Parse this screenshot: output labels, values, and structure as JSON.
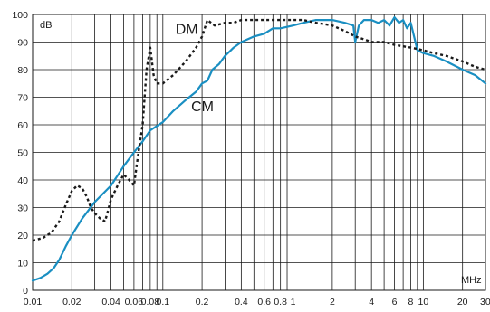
{
  "chart_data": {
    "type": "line",
    "title": "",
    "xscale": "log",
    "xlim": [
      0.01,
      30
    ],
    "ylim": [
      0,
      100
    ],
    "grid": true,
    "ylabel": "dB",
    "xlabel": "MHz",
    "x_ticks": [
      {
        "value": 0.01,
        "label": "0.01"
      },
      {
        "value": 0.02,
        "label": "0.02"
      },
      {
        "value": 0.04,
        "label": "0.04"
      },
      {
        "value": 0.06,
        "label": "0.06"
      },
      {
        "value": 0.08,
        "label": "0.08"
      },
      {
        "value": 0.1,
        "label": "0.1"
      },
      {
        "value": 0.2,
        "label": "0.2"
      },
      {
        "value": 0.4,
        "label": "0.4"
      },
      {
        "value": 0.6,
        "label": "0.6"
      },
      {
        "value": 0.8,
        "label": "0.8"
      },
      {
        "value": 1,
        "label": "1"
      },
      {
        "value": 2,
        "label": "2"
      },
      {
        "value": 4,
        "label": "4"
      },
      {
        "value": 6,
        "label": "6"
      },
      {
        "value": 8,
        "label": "8"
      },
      {
        "value": 10,
        "label": "10"
      },
      {
        "value": 20,
        "label": "20"
      },
      {
        "value": 30,
        "label": "30"
      }
    ],
    "x_gridlines": [
      0.01,
      0.02,
      0.03,
      0.04,
      0.05,
      0.06,
      0.07,
      0.08,
      0.09,
      0.1,
      0.2,
      0.3,
      0.4,
      0.5,
      0.6,
      0.7,
      0.8,
      0.9,
      1,
      2,
      3,
      4,
      5,
      6,
      7,
      8,
      9,
      10,
      20,
      30
    ],
    "y_ticks": [
      {
        "value": 0,
        "label": "0"
      },
      {
        "value": 10,
        "label": "10"
      },
      {
        "value": 20,
        "label": "20"
      },
      {
        "value": 30,
        "label": "30"
      },
      {
        "value": 40,
        "label": "40"
      },
      {
        "value": 50,
        "label": "50"
      },
      {
        "value": 60,
        "label": "60"
      },
      {
        "value": 70,
        "label": "70"
      },
      {
        "value": 80,
        "label": "80"
      },
      {
        "value": 90,
        "label": "90"
      },
      {
        "value": 100,
        "label": "100"
      }
    ],
    "series": [
      {
        "name": "CM",
        "color": "#1a8fc2",
        "style": "solid",
        "x": [
          0.01,
          0.0115,
          0.013,
          0.0145,
          0.016,
          0.018,
          0.02,
          0.024,
          0.03,
          0.04,
          0.05,
          0.06,
          0.07,
          0.08,
          0.1,
          0.12,
          0.15,
          0.18,
          0.2,
          0.22,
          0.24,
          0.27,
          0.3,
          0.35,
          0.4,
          0.5,
          0.6,
          0.7,
          0.8,
          1,
          1.2,
          1.5,
          2,
          2.5,
          2.9,
          3,
          3.2,
          3.5,
          4,
          4.5,
          5,
          5.5,
          6,
          6.5,
          7,
          7.5,
          8,
          8.5,
          9,
          10,
          12,
          15,
          20,
          25,
          30
        ],
        "y": [
          3.5,
          4.5,
          6,
          8,
          11,
          16,
          20,
          26,
          32,
          38,
          45,
          50,
          54,
          58,
          61,
          65,
          69,
          72,
          75,
          76,
          80,
          82,
          85,
          88,
          90,
          92,
          93,
          95,
          95,
          96,
          97,
          98,
          98,
          97,
          96,
          90,
          96,
          98,
          98,
          97,
          98,
          96,
          99,
          97,
          98,
          95,
          97,
          92,
          87,
          86,
          85,
          83,
          80,
          78,
          75
        ]
      },
      {
        "name": "DM",
        "color": "#1a1a1a",
        "style": "dotted",
        "x": [
          0.01,
          0.012,
          0.014,
          0.016,
          0.018,
          0.02,
          0.022,
          0.024,
          0.026,
          0.028,
          0.03,
          0.033,
          0.036,
          0.04,
          0.045,
          0.05,
          0.055,
          0.06,
          0.065,
          0.07,
          0.075,
          0.08,
          0.085,
          0.09,
          0.1,
          0.12,
          0.15,
          0.18,
          0.2,
          0.22,
          0.25,
          0.3,
          0.35,
          0.4,
          0.5,
          0.6,
          0.7,
          0.8,
          1,
          1.2,
          1.5,
          2,
          2.5,
          3,
          3.5,
          4,
          5,
          6,
          8,
          10,
          12,
          15,
          20,
          25,
          30
        ],
        "y": [
          18,
          19,
          21,
          25,
          31,
          36,
          38,
          37,
          34,
          30,
          28,
          26,
          25,
          33,
          38,
          42,
          40,
          38,
          50,
          60,
          80,
          88,
          78,
          75,
          75,
          78,
          83,
          88,
          92,
          98,
          96,
          97,
          97,
          98,
          98,
          98,
          98,
          98,
          98,
          98,
          97,
          96,
          94,
          92,
          91,
          90,
          90,
          89,
          88,
          87,
          86,
          85,
          83,
          81,
          80
        ]
      }
    ],
    "annotations": [
      {
        "text": "DM",
        "x": 0.125,
        "y": 93
      },
      {
        "text": "CM",
        "x": 0.165,
        "y": 65
      }
    ]
  }
}
